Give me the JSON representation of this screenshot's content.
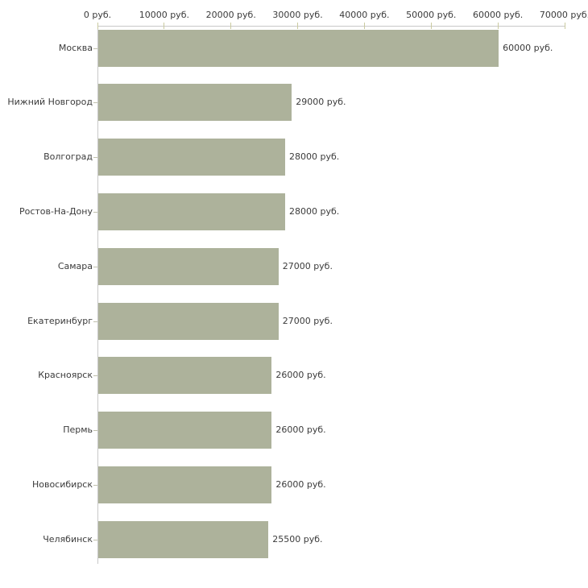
{
  "chart_data": {
    "type": "bar",
    "orientation": "horizontal",
    "title": "",
    "xlabel": "",
    "ylabel": "",
    "unit": "руб.",
    "categories": [
      "Москва",
      "Нижний Новгород",
      "Волгоград",
      "Ростов-На-Дону",
      "Самара",
      "Екатеринбург",
      "Красноярск",
      "Пермь",
      "Новосибирск",
      "Челябинск"
    ],
    "values": [
      60000,
      29000,
      28000,
      28000,
      27000,
      27000,
      26000,
      26000,
      26000,
      25500
    ],
    "value_labels": [
      "60000 руб.",
      "29000 руб.",
      "28000 руб.",
      "28000 руб.",
      "27000 руб.",
      "27000 руб.",
      "26000 руб.",
      "26000 руб.",
      "26000 руб.",
      "25500 руб."
    ],
    "x_ticks": [
      0,
      10000,
      20000,
      30000,
      40000,
      50000,
      60000,
      70000
    ],
    "x_tick_labels": [
      "0 руб.",
      "10000 руб.",
      "20000 руб.",
      "30000 руб.",
      "40000 руб.",
      "50000 руб.",
      "60000 руб.",
      "70000 руб."
    ],
    "xlim": [
      0,
      70000
    ],
    "grid": false,
    "legend": "none",
    "axis_position": "top",
    "colors": {
      "bar": "#adb29b",
      "axis_line": "#c8c8c8",
      "tick": "#cacaa0",
      "category_tick": "#c0c0ad",
      "text": "#3b3b3b",
      "background": "#ffffff"
    }
  }
}
